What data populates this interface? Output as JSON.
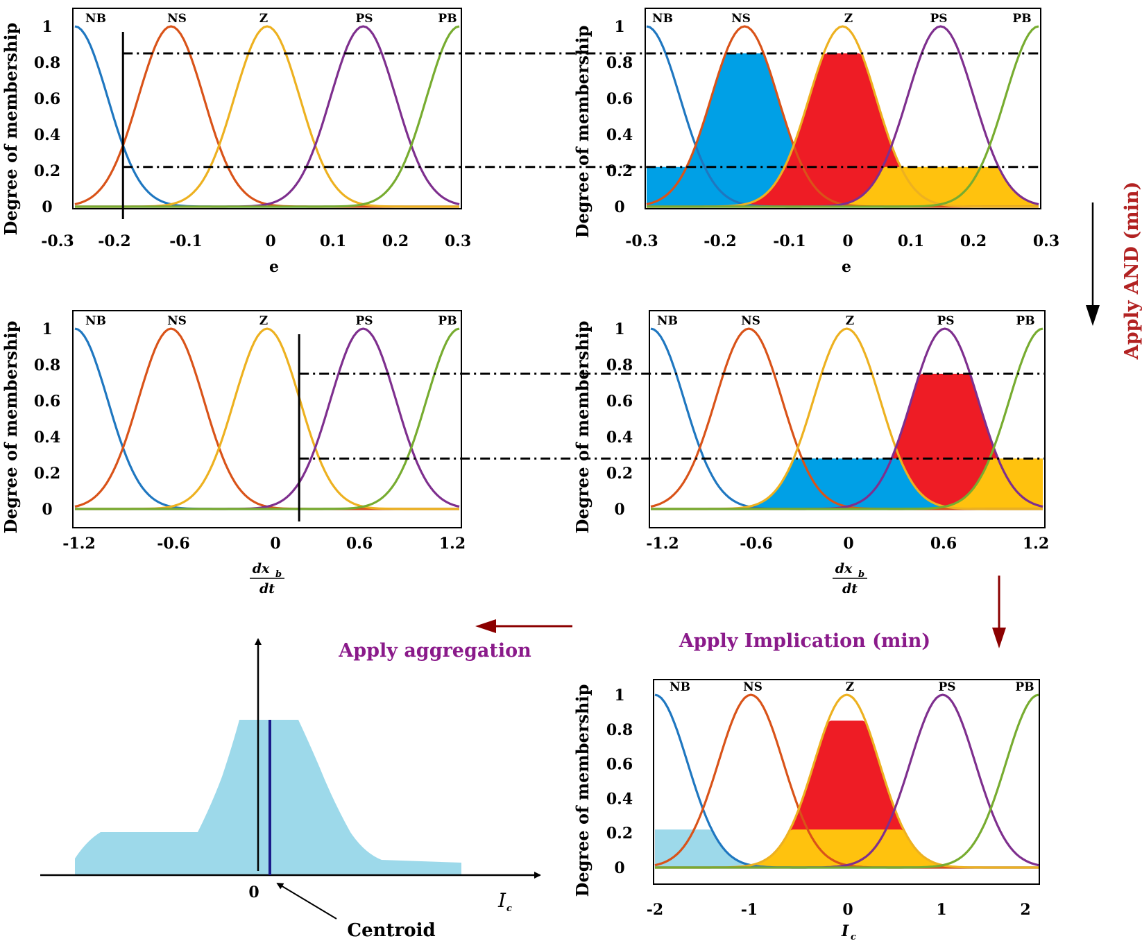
{
  "mf_labels": [
    "NB",
    "NS",
    "Z",
    "PS",
    "PB"
  ],
  "y_axis_label": "Degree of membership",
  "y_ticks": [
    "0",
    "0.2",
    "0.4",
    "0.6",
    "0.8",
    "1"
  ],
  "colors": {
    "NB": "#1f77c0",
    "NS": "#d95319",
    "Z": "#edb120",
    "PS": "#7e2f8e",
    "PB": "#77ac30",
    "fill_blue": "#00a0e6",
    "fill_red": "#ee1c25",
    "fill_yellow": "#ffc20e",
    "fill_lightblue": "#9dd9ea",
    "arrow_red": "#8b0000",
    "text_purple": "#8a1a8a",
    "text_red": "#b22222",
    "tick_navy": "#1a1a8a"
  },
  "panels": {
    "e_input": {
      "x_ticks": [
        "-0.3",
        "-0.2",
        "-0.1",
        "0",
        "0.1",
        "0.2",
        "0.3"
      ],
      "x_label": "e",
      "input_value": -0.225,
      "cut_levels": [
        0.85,
        0.22
      ]
    },
    "e_rules": {
      "x_ticks": [
        "-0.3",
        "-0.2",
        "-0.1",
        "0",
        "0.1",
        "0.2",
        "0.3"
      ],
      "x_label": "e"
    },
    "dx_input": {
      "x_ticks": [
        "-1.2",
        "-0.6",
        "0",
        "0.6",
        "1.2"
      ],
      "x_label_num": "dx",
      "x_label_sub": "b",
      "x_label_den": "dt",
      "input_value": 0.2,
      "cut_levels": [
        0.75,
        0.28
      ]
    },
    "dx_rules": {
      "x_ticks": [
        "-1.2",
        "-0.6",
        "0",
        "0.6",
        "1.2"
      ],
      "x_label_num": "dx",
      "x_label_sub": "b",
      "x_label_den": "dt"
    },
    "ic_implication": {
      "x_ticks": [
        "-2",
        "-1",
        "0",
        "1",
        "2"
      ],
      "x_label": "I",
      "x_label_sub": "c",
      "cut_levels": [
        0.85,
        0.22
      ]
    }
  },
  "aggregation": {
    "origin_label": "0",
    "axis_label": "I",
    "axis_label_sub": "c",
    "centroid_label": "Centroid",
    "centroid_value": 0.08
  },
  "annotations": {
    "apply_and": "Apply AND (min)",
    "apply_implication": "Apply Implication (min)",
    "apply_aggregation": "Apply aggregation"
  }
}
